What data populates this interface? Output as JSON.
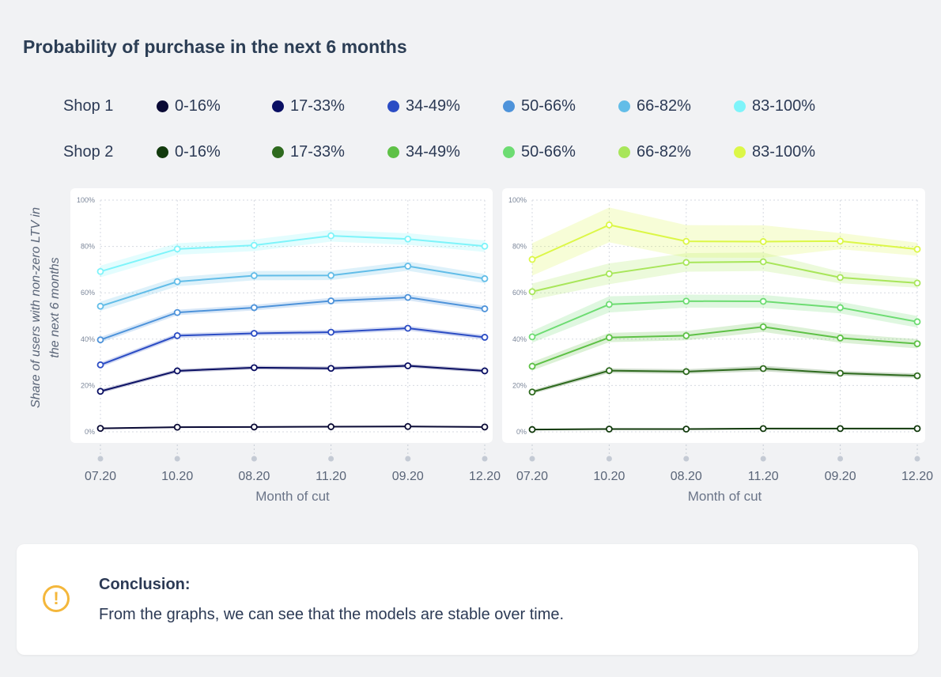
{
  "title": "Probability of purchase in the next 6 months",
  "conclusion": {
    "icon": "exclamation-circle-icon",
    "heading": "Conclusion:",
    "text": "From the graphs, we can see that the models are stable over time."
  },
  "chart_data": [
    {
      "type": "line",
      "title": "",
      "shop": "Shop 1",
      "xlabel": "Month of cut",
      "ylabel": "Share of users with non-zero LTV in the next 6 months",
      "categories": [
        "07.20",
        "10.20",
        "08.20",
        "11.20",
        "09.20",
        "12.20"
      ],
      "yticks": [
        "0%",
        "20%",
        "40%",
        "60%",
        "80%",
        "100%"
      ],
      "ylim": [
        0,
        100
      ],
      "grid": true,
      "legend": "top",
      "series": [
        {
          "name": "0-16%",
          "color": "#0a0a35",
          "values": [
            1.5,
            2,
            2.1,
            2.2,
            2.3,
            2.1
          ],
          "ci": [
            0.3,
            0.3,
            0.3,
            0.3,
            0.3,
            0.3
          ]
        },
        {
          "name": "17-33%",
          "color": "#0a0f63",
          "values": [
            17.5,
            26.3,
            27.7,
            27.4,
            28.5,
            26.3
          ],
          "ci": [
            0.8,
            0.8,
            0.8,
            0.8,
            0.8,
            0.8
          ]
        },
        {
          "name": "34-49%",
          "color": "#2b4cc4",
          "values": [
            28.9,
            41.5,
            42.5,
            43,
            44.7,
            40.8
          ],
          "ci": [
            1,
            1,
            1,
            1,
            1,
            1
          ]
        },
        {
          "name": "50-66%",
          "color": "#4e93da",
          "values": [
            39.7,
            51.5,
            53.6,
            56.5,
            58,
            53.1
          ],
          "ci": [
            1.2,
            1.2,
            1.2,
            1.3,
            1.3,
            1.3
          ]
        },
        {
          "name": "66-82%",
          "color": "#62bde8",
          "values": [
            54.2,
            64.8,
            67.4,
            67.5,
            71.5,
            66.1
          ],
          "ci": [
            2,
            2,
            2,
            2,
            2,
            2
          ]
        },
        {
          "name": "83-100%",
          "color": "#7ef4fa",
          "values": [
            69.2,
            78.9,
            80.5,
            84.6,
            83.2,
            80.1
          ],
          "ci": [
            2.5,
            2.5,
            2.5,
            2.5,
            2.5,
            2.5
          ]
        }
      ]
    },
    {
      "type": "line",
      "title": "",
      "shop": "Shop 2",
      "xlabel": "Month of cut",
      "ylabel": "",
      "categories": [
        "07.20",
        "10.20",
        "08.20",
        "11.20",
        "09.20",
        "12.20"
      ],
      "yticks": [
        "0%",
        "20%",
        "40%",
        "60%",
        "80%",
        "100%"
      ],
      "ylim": [
        0,
        100
      ],
      "grid": true,
      "legend": "top",
      "series": [
        {
          "name": "0-16%",
          "color": "#123a0d",
          "values": [
            1,
            1.2,
            1.2,
            1.4,
            1.4,
            1.4
          ],
          "ci": [
            0.3,
            0.3,
            0.3,
            0.3,
            0.3,
            0.3
          ]
        },
        {
          "name": "17-33%",
          "color": "#2e6a1e",
          "values": [
            17.2,
            26.4,
            26,
            27.3,
            25.3,
            24.2
          ],
          "ci": [
            0.8,
            1,
            1,
            1.2,
            1,
            1
          ]
        },
        {
          "name": "34-49%",
          "color": "#5ec146",
          "values": [
            28.3,
            40.7,
            41.5,
            45.3,
            40.5,
            38
          ],
          "ci": [
            1.8,
            2,
            2,
            2.2,
            2,
            2
          ]
        },
        {
          "name": "50-66%",
          "color": "#6ddc72",
          "values": [
            41,
            55,
            56.4,
            56.3,
            53.6,
            47.5
          ],
          "ci": [
            2.5,
            3.5,
            2.8,
            2.8,
            2.5,
            2.5
          ]
        },
        {
          "name": "66-82%",
          "color": "#a8e65a",
          "values": [
            60.5,
            68.2,
            73.1,
            73.4,
            66.6,
            64.2
          ],
          "ci": [
            3.5,
            4.5,
            4,
            4,
            2.5,
            2
          ]
        },
        {
          "name": "83-100%",
          "color": "#dcf747",
          "values": [
            74.4,
            89.3,
            82.2,
            82.1,
            82.3,
            78.8
          ],
          "ci": [
            7,
            7.5,
            7,
            7,
            3.5,
            2.8
          ]
        }
      ]
    }
  ]
}
